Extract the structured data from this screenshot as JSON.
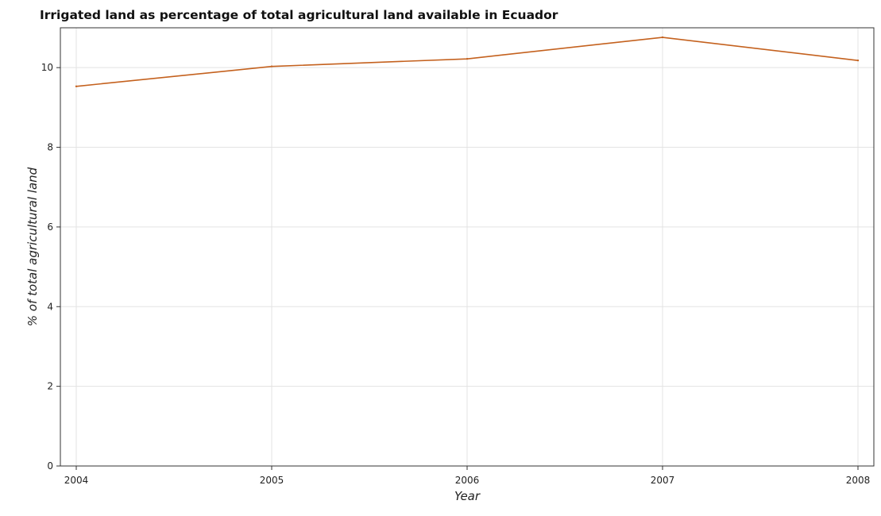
{
  "chart_data": {
    "type": "line",
    "title": "Irrigated land as percentage of total agricultural land available in Ecuador",
    "xlabel": "Year",
    "ylabel": "% of total agricultural land",
    "categories": [
      "2004",
      "2005",
      "2006",
      "2007",
      "2008"
    ],
    "series": [
      {
        "values": [
          9.53,
          10.03,
          10.22,
          10.76,
          10.18
        ]
      }
    ],
    "ylim": [
      0,
      11
    ],
    "yticks": [
      0,
      2,
      4,
      6,
      8,
      10
    ],
    "ytick_labels": [
      "0",
      "2",
      "4",
      "6",
      "8",
      "10"
    ],
    "grid": true,
    "line_color": "#c4611e"
  }
}
